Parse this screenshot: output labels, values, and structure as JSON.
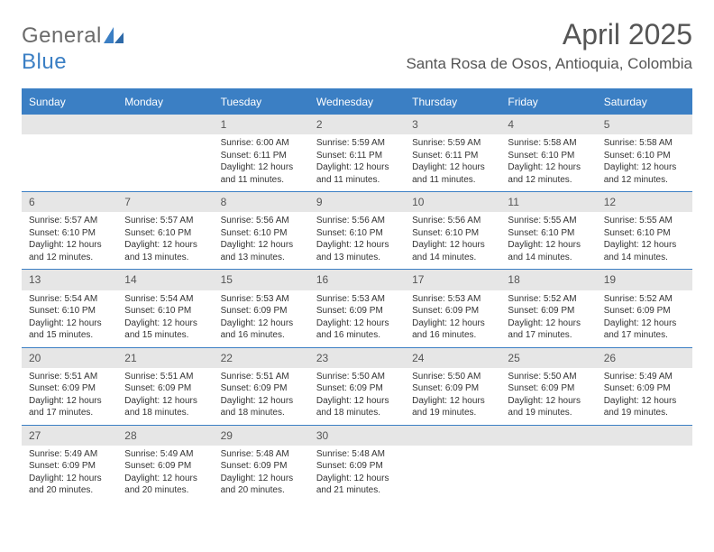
{
  "brand": {
    "part1": "General",
    "part2": "Blue"
  },
  "colors": {
    "brand_blue": "#3b7fc4",
    "header_bg": "#3b7fc4",
    "header_fg": "#ffffff",
    "band_bg": "#e6e6e6",
    "text": "#333333",
    "muted": "#555555",
    "rule": "#3b7fc4"
  },
  "title": "April 2025",
  "location": "Santa Rosa de Osos, Antioquia, Colombia",
  "day_headers": [
    "Sunday",
    "Monday",
    "Tuesday",
    "Wednesday",
    "Thursday",
    "Friday",
    "Saturday"
  ],
  "weeks": [
    [
      null,
      null,
      {
        "n": "1",
        "sr": "Sunrise: 6:00 AM",
        "ss": "Sunset: 6:11 PM",
        "d1": "Daylight: 12 hours",
        "d2": "and 11 minutes."
      },
      {
        "n": "2",
        "sr": "Sunrise: 5:59 AM",
        "ss": "Sunset: 6:11 PM",
        "d1": "Daylight: 12 hours",
        "d2": "and 11 minutes."
      },
      {
        "n": "3",
        "sr": "Sunrise: 5:59 AM",
        "ss": "Sunset: 6:11 PM",
        "d1": "Daylight: 12 hours",
        "d2": "and 11 minutes."
      },
      {
        "n": "4",
        "sr": "Sunrise: 5:58 AM",
        "ss": "Sunset: 6:10 PM",
        "d1": "Daylight: 12 hours",
        "d2": "and 12 minutes."
      },
      {
        "n": "5",
        "sr": "Sunrise: 5:58 AM",
        "ss": "Sunset: 6:10 PM",
        "d1": "Daylight: 12 hours",
        "d2": "and 12 minutes."
      }
    ],
    [
      {
        "n": "6",
        "sr": "Sunrise: 5:57 AM",
        "ss": "Sunset: 6:10 PM",
        "d1": "Daylight: 12 hours",
        "d2": "and 12 minutes."
      },
      {
        "n": "7",
        "sr": "Sunrise: 5:57 AM",
        "ss": "Sunset: 6:10 PM",
        "d1": "Daylight: 12 hours",
        "d2": "and 13 minutes."
      },
      {
        "n": "8",
        "sr": "Sunrise: 5:56 AM",
        "ss": "Sunset: 6:10 PM",
        "d1": "Daylight: 12 hours",
        "d2": "and 13 minutes."
      },
      {
        "n": "9",
        "sr": "Sunrise: 5:56 AM",
        "ss": "Sunset: 6:10 PM",
        "d1": "Daylight: 12 hours",
        "d2": "and 13 minutes."
      },
      {
        "n": "10",
        "sr": "Sunrise: 5:56 AM",
        "ss": "Sunset: 6:10 PM",
        "d1": "Daylight: 12 hours",
        "d2": "and 14 minutes."
      },
      {
        "n": "11",
        "sr": "Sunrise: 5:55 AM",
        "ss": "Sunset: 6:10 PM",
        "d1": "Daylight: 12 hours",
        "d2": "and 14 minutes."
      },
      {
        "n": "12",
        "sr": "Sunrise: 5:55 AM",
        "ss": "Sunset: 6:10 PM",
        "d1": "Daylight: 12 hours",
        "d2": "and 14 minutes."
      }
    ],
    [
      {
        "n": "13",
        "sr": "Sunrise: 5:54 AM",
        "ss": "Sunset: 6:10 PM",
        "d1": "Daylight: 12 hours",
        "d2": "and 15 minutes."
      },
      {
        "n": "14",
        "sr": "Sunrise: 5:54 AM",
        "ss": "Sunset: 6:10 PM",
        "d1": "Daylight: 12 hours",
        "d2": "and 15 minutes."
      },
      {
        "n": "15",
        "sr": "Sunrise: 5:53 AM",
        "ss": "Sunset: 6:09 PM",
        "d1": "Daylight: 12 hours",
        "d2": "and 16 minutes."
      },
      {
        "n": "16",
        "sr": "Sunrise: 5:53 AM",
        "ss": "Sunset: 6:09 PM",
        "d1": "Daylight: 12 hours",
        "d2": "and 16 minutes."
      },
      {
        "n": "17",
        "sr": "Sunrise: 5:53 AM",
        "ss": "Sunset: 6:09 PM",
        "d1": "Daylight: 12 hours",
        "d2": "and 16 minutes."
      },
      {
        "n": "18",
        "sr": "Sunrise: 5:52 AM",
        "ss": "Sunset: 6:09 PM",
        "d1": "Daylight: 12 hours",
        "d2": "and 17 minutes."
      },
      {
        "n": "19",
        "sr": "Sunrise: 5:52 AM",
        "ss": "Sunset: 6:09 PM",
        "d1": "Daylight: 12 hours",
        "d2": "and 17 minutes."
      }
    ],
    [
      {
        "n": "20",
        "sr": "Sunrise: 5:51 AM",
        "ss": "Sunset: 6:09 PM",
        "d1": "Daylight: 12 hours",
        "d2": "and 17 minutes."
      },
      {
        "n": "21",
        "sr": "Sunrise: 5:51 AM",
        "ss": "Sunset: 6:09 PM",
        "d1": "Daylight: 12 hours",
        "d2": "and 18 minutes."
      },
      {
        "n": "22",
        "sr": "Sunrise: 5:51 AM",
        "ss": "Sunset: 6:09 PM",
        "d1": "Daylight: 12 hours",
        "d2": "and 18 minutes."
      },
      {
        "n": "23",
        "sr": "Sunrise: 5:50 AM",
        "ss": "Sunset: 6:09 PM",
        "d1": "Daylight: 12 hours",
        "d2": "and 18 minutes."
      },
      {
        "n": "24",
        "sr": "Sunrise: 5:50 AM",
        "ss": "Sunset: 6:09 PM",
        "d1": "Daylight: 12 hours",
        "d2": "and 19 minutes."
      },
      {
        "n": "25",
        "sr": "Sunrise: 5:50 AM",
        "ss": "Sunset: 6:09 PM",
        "d1": "Daylight: 12 hours",
        "d2": "and 19 minutes."
      },
      {
        "n": "26",
        "sr": "Sunrise: 5:49 AM",
        "ss": "Sunset: 6:09 PM",
        "d1": "Daylight: 12 hours",
        "d2": "and 19 minutes."
      }
    ],
    [
      {
        "n": "27",
        "sr": "Sunrise: 5:49 AM",
        "ss": "Sunset: 6:09 PM",
        "d1": "Daylight: 12 hours",
        "d2": "and 20 minutes."
      },
      {
        "n": "28",
        "sr": "Sunrise: 5:49 AM",
        "ss": "Sunset: 6:09 PM",
        "d1": "Daylight: 12 hours",
        "d2": "and 20 minutes."
      },
      {
        "n": "29",
        "sr": "Sunrise: 5:48 AM",
        "ss": "Sunset: 6:09 PM",
        "d1": "Daylight: 12 hours",
        "d2": "and 20 minutes."
      },
      {
        "n": "30",
        "sr": "Sunrise: 5:48 AM",
        "ss": "Sunset: 6:09 PM",
        "d1": "Daylight: 12 hours",
        "d2": "and 21 minutes."
      },
      null,
      null,
      null
    ]
  ]
}
